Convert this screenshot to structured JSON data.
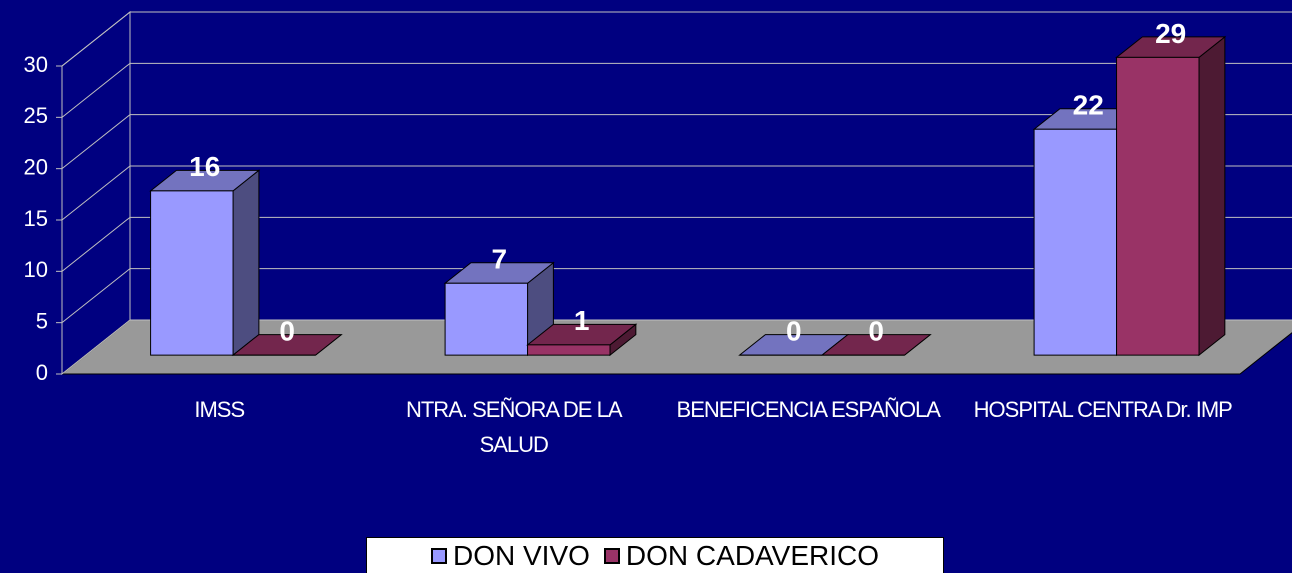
{
  "chart_data": {
    "type": "bar3d",
    "categories": [
      "IMSS",
      "NTRA. SEÑORA DE LA SALUD",
      "BENEFICENCIA ESPAÑOLA",
      "HOSPITAL CENTRA Dr.  IMP"
    ],
    "series": [
      {
        "name": "DON VIVO",
        "color": "#9999ff",
        "values": [
          16,
          7,
          0,
          22
        ]
      },
      {
        "name": "DON CADAVERICO",
        "color": "#993366",
        "values": [
          0,
          1,
          0,
          29
        ]
      }
    ],
    "ylim": [
      0,
      30
    ],
    "yticks": [
      0,
      5,
      10,
      15,
      20,
      25,
      30
    ],
    "grid": true,
    "legend": "bottom"
  }
}
